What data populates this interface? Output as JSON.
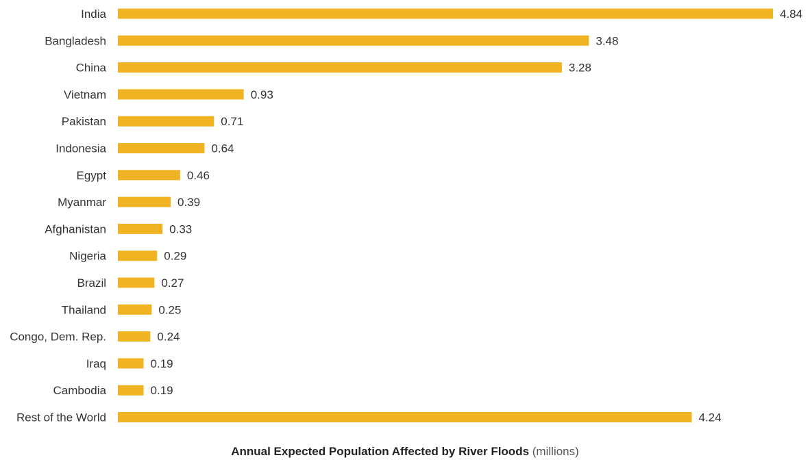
{
  "chart_data": {
    "type": "bar",
    "orientation": "horizontal",
    "categories": [
      "India",
      "Bangladesh",
      "China",
      "Vietnam",
      "Pakistan",
      "Indonesia",
      "Egypt",
      "Myanmar",
      "Afghanistan",
      "Nigeria",
      "Brazil",
      "Thailand",
      "Congo, Dem. Rep.",
      "Iraq",
      "Cambodia",
      "Rest of the World"
    ],
    "values": [
      4.84,
      3.48,
      3.28,
      0.93,
      0.71,
      0.64,
      0.46,
      0.39,
      0.33,
      0.29,
      0.27,
      0.25,
      0.24,
      0.19,
      0.19,
      4.24
    ],
    "value_labels": [
      "4.84",
      "3.48",
      "3.28",
      "0.93",
      "0.71",
      "0.64",
      "0.46",
      "0.39",
      "0.33",
      "0.29",
      "0.27",
      "0.25",
      "0.24",
      "0.19",
      "0.19",
      "4.24"
    ],
    "xlabel": "Annual Expected Population Affected by River Floods",
    "xlabel_unit": "(millions)",
    "xlim": [
      0,
      4.84
    ],
    "grid": false,
    "legend": "none",
    "colors": {
      "bar": "#f0b323",
      "text": "#333333"
    }
  }
}
